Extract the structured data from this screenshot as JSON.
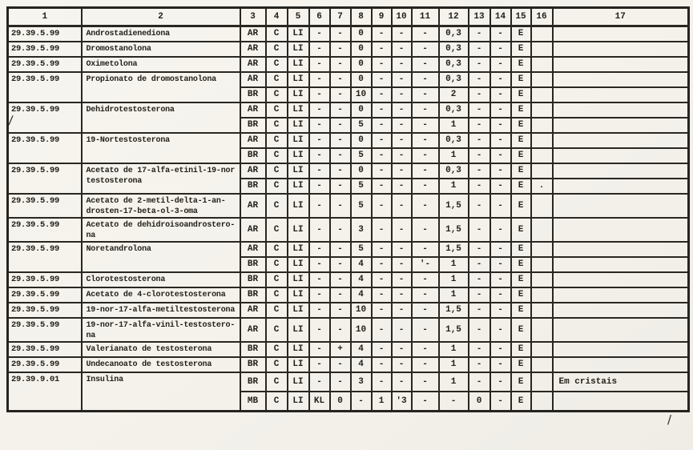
{
  "document": {
    "columns": [
      "1",
      "2",
      "3",
      "4",
      "5",
      "6",
      "7",
      "8",
      "9",
      "10",
      "11",
      "12",
      "13",
      "14",
      "15",
      "16",
      "17"
    ],
    "rows": [
      {
        "code": "29.39.5.99",
        "name": "Androstadienediona",
        "subrows": [
          [
            "AR",
            "C",
            "LI",
            "-",
            "-",
            "0",
            "-",
            "-",
            "-",
            "0,3",
            "-",
            "-",
            "E",
            "",
            ""
          ]
        ]
      },
      {
        "code": "29.39.5.99",
        "name": "Dromostanolona",
        "subrows": [
          [
            "AR",
            "C",
            "LI",
            "-",
            "-",
            "0",
            "-",
            "-",
            "-",
            "0,3",
            "-",
            "-",
            "E",
            "",
            ""
          ]
        ]
      },
      {
        "code": "29.39.5.99",
        "name": "Oximetolona",
        "subrows": [
          [
            "AR",
            "C",
            "LI",
            "-",
            "-",
            "0",
            "-",
            "-",
            "-",
            "0,3",
            "-",
            "-",
            "E",
            "",
            ""
          ]
        ]
      },
      {
        "code": "29.39.5.99",
        "name": "Propionato de dromostanolona",
        "subrows": [
          [
            "AR",
            "C",
            "LI",
            "-",
            "-",
            "0",
            "-",
            "-",
            "-",
            "0,3",
            "-",
            "-",
            "E",
            "",
            ""
          ],
          [
            "BR",
            "C",
            "LI",
            "-",
            "-",
            "10",
            "-",
            "-",
            "-",
            "2",
            "-",
            "-",
            "E",
            "",
            ""
          ]
        ]
      },
      {
        "code": "29.39.5.99",
        "name": "Dehidrotestosterona",
        "subrows": [
          [
            "AR",
            "C",
            "LI",
            "-",
            "-",
            "0",
            "-",
            "-",
            "-",
            "0,3",
            "-",
            "-",
            "E",
            "",
            ""
          ],
          [
            "BR",
            "C",
            "LI",
            "-",
            "-",
            "5",
            "-",
            "-",
            "-",
            "1",
            "-",
            "-",
            "E",
            "",
            ""
          ]
        ]
      },
      {
        "code": "29.39.5.99",
        "name": "19-Nortestosterona",
        "subrows": [
          [
            "AR",
            "C",
            "LI",
            "-",
            "-",
            "0",
            "-",
            "-",
            "-",
            "0,3",
            "-",
            "-",
            "E",
            "",
            ""
          ],
          [
            "BR",
            "C",
            "LI",
            "-",
            "-",
            "5",
            "-",
            "-",
            "-",
            "1",
            "-",
            "-",
            "E",
            "",
            ""
          ]
        ]
      },
      {
        "code": "29.39.5.99",
        "name": "Acetato de 17-alfa-etinil-19-nor\ntestosterona",
        "subrows": [
          [
            "AR",
            "C",
            "LI",
            "-",
            "-",
            "0",
            "-",
            "-",
            "-",
            "0,3",
            "-",
            "-",
            "E",
            "",
            ""
          ],
          [
            "BR",
            "C",
            "LI",
            "-",
            "-",
            "5",
            "-",
            "-",
            "-",
            "1",
            "-",
            "-",
            "E",
            ".",
            ""
          ]
        ]
      },
      {
        "code": "29.39.5.99",
        "name": "Acetato de 2-metil-delta-1-an-\ndrosten-17-beta-ol-3-oma",
        "subrows": [
          [
            "AR",
            "C",
            "LI",
            "-",
            "-",
            "5",
            "-",
            "-",
            "-",
            "1,5",
            "-",
            "-",
            "E",
            "",
            ""
          ]
        ]
      },
      {
        "code": "29.39.5.99",
        "name": "Acetato de dehidroisoandrostero-\nna",
        "subrows": [
          [
            "AR",
            "C",
            "LI",
            "-",
            "-",
            "3",
            "-",
            "-",
            "-",
            "1,5",
            "-",
            "-",
            "E",
            "",
            ""
          ]
        ]
      },
      {
        "code": "29.39.5.99",
        "name": "Noretandrolona",
        "subrows": [
          [
            "AR",
            "C",
            "LI",
            "-",
            "-",
            "5",
            "-",
            "-",
            "-",
            "1,5",
            "-",
            "-",
            "E",
            "",
            ""
          ],
          [
            "BR",
            "C",
            "LI",
            "-",
            "-",
            "4",
            "-",
            "-",
            "'-",
            "1",
            "-",
            "-",
            "E",
            "",
            ""
          ]
        ]
      },
      {
        "code": "29.39.5.99",
        "name": "Clorotestosterona",
        "subrows": [
          [
            "BR",
            "C",
            "LI",
            "-",
            "-",
            "4",
            "-",
            "-",
            "-",
            "1",
            "-",
            "-",
            "E",
            "",
            ""
          ]
        ]
      },
      {
        "code": "29.39.5.99",
        "name": "Acetato de 4-clorotestosterona",
        "subrows": [
          [
            "BR",
            "C",
            "LI",
            "-",
            "-",
            "4",
            "-",
            "-",
            "-",
            "1",
            "-",
            "-",
            "E",
            "",
            ""
          ]
        ]
      },
      {
        "code": "29.39.5.99",
        "name": "19-nor-17-alfa-metiltestosterona",
        "subrows": [
          [
            "AR",
            "C",
            "LI",
            "-",
            "-",
            "10",
            "-",
            "-",
            "-",
            "1,5",
            "-",
            "-",
            "E",
            "",
            ""
          ]
        ]
      },
      {
        "code": "29.39.5.99",
        "name": "19-nor-17-alfa-vinil-testostero-\nna",
        "subrows": [
          [
            "AR",
            "C",
            "LI",
            "-",
            "-",
            "10",
            "-",
            "-",
            "-",
            "1,5",
            "-",
            "-",
            "E",
            "",
            ""
          ]
        ]
      },
      {
        "code": "29.39.5.99",
        "name": "Valerianato de testosterona",
        "subrows": [
          [
            "BR",
            "C",
            "LI",
            "-",
            "+",
            "4",
            "-",
            "-",
            "-",
            "1",
            "-",
            "-",
            "E",
            "",
            ""
          ]
        ]
      },
      {
        "code": "29.39.5.99",
        "name": "Undecanoato de testosterona",
        "subrows": [
          [
            "BR",
            "C",
            "LI",
            "-",
            "-",
            "4",
            "-",
            "-",
            "-",
            "1",
            "-",
            "-",
            "E",
            "",
            ""
          ]
        ]
      },
      {
        "code": "29.39.9.01",
        "name": "Insulina",
        "subrows": [
          [
            "BR",
            "C",
            "LI",
            "-",
            "-",
            "3",
            "-",
            "-",
            "-",
            "1",
            "-",
            "-",
            "E",
            "",
            "Em cristais"
          ],
          [
            "MB",
            "C",
            "LI",
            "KL",
            "0",
            "-",
            "1",
            "'3",
            "-",
            "-",
            "0",
            "-",
            "E",
            "",
            ""
          ]
        ]
      }
    ],
    "artifacts": [
      {
        "glyph": "∕"
      },
      {
        "glyph": "∕"
      }
    ]
  }
}
